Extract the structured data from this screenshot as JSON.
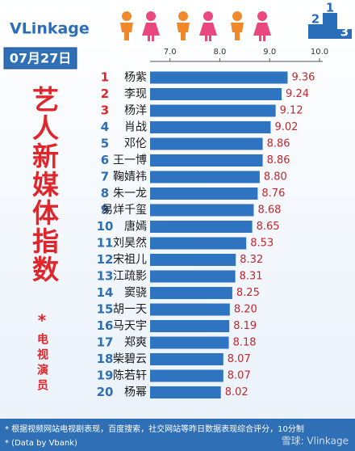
{
  "logo": "VLinkage",
  "podium": [
    "2",
    "1",
    "3"
  ],
  "date": "07月27日",
  "chart_data": {
    "type": "bar",
    "orientation": "horizontal",
    "title": "艺人新媒体指数",
    "title_mark": "*",
    "subtitle": "电视演员",
    "ranks": [
      1,
      2,
      3,
      4,
      5,
      6,
      7,
      8,
      9,
      10,
      11,
      12,
      13,
      14,
      15,
      16,
      17,
      18,
      19,
      20
    ],
    "categories": [
      "杨紫",
      "李现",
      "杨洋",
      "肖战",
      "邓伦",
      "王一博",
      "鞠婧祎",
      "朱一龙",
      "易烊千玺",
      "唐嫣",
      "刘昊然",
      "宋祖儿",
      "江疏影",
      "窦骁",
      "胡一天",
      "马天宇",
      "郑爽",
      "柴碧云",
      "陈若轩",
      "杨幂"
    ],
    "values": [
      9.36,
      9.24,
      9.12,
      9.02,
      8.86,
      8.86,
      8.8,
      8.76,
      8.68,
      8.65,
      8.53,
      8.32,
      8.31,
      8.25,
      8.2,
      8.19,
      8.18,
      8.07,
      8.07,
      8.02
    ],
    "value_labels": [
      "9.36",
      "9.24",
      "9.12",
      "9.02",
      "8.86",
      "8.86",
      "8.80",
      "8.76",
      "8.68",
      "8.65",
      "8.53",
      "8.32",
      "8.31",
      "8.25",
      "8.20",
      "8.19",
      "8.18",
      "8.07",
      "8.07",
      "8.02"
    ],
    "color": "#2f74c0",
    "xlim": [
      6.6,
      10.0
    ],
    "xticks": [
      {
        "value": 7,
        "label": "7.0"
      },
      {
        "value": 8,
        "label": "8.0"
      },
      {
        "value": 9,
        "label": "9.0"
      },
      {
        "value": 10,
        "label": "10.0"
      }
    ]
  },
  "footer": {
    "notes": [
      "* 根据视频网站电视剧表现，百度搜索，社交网站等昨日数据表现综合评分，10分制",
      "* (Data by Vbank)"
    ],
    "watermark": "雪球: Vlinkage"
  }
}
